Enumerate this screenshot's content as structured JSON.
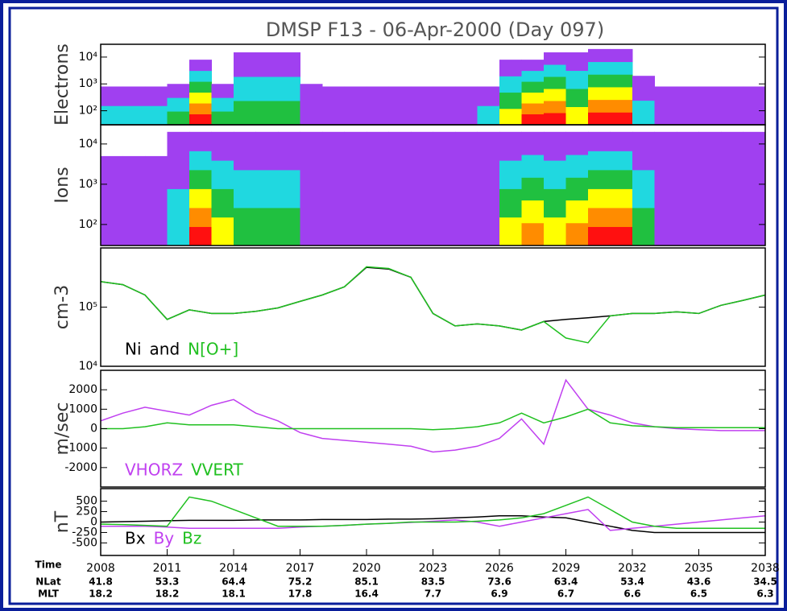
{
  "chart_data": [
    {
      "type": "spectrogram",
      "title": "DMSP F13 - 06-Apr-2000 (Day 097)",
      "ylabel": "Electrons",
      "ylog": true,
      "ylim": [
        30,
        30000
      ],
      "yticks": [
        {
          "value": 100,
          "label": "10²"
        },
        {
          "value": 1000,
          "label": "10³"
        },
        {
          "value": 10000,
          "label": "10⁴"
        }
      ],
      "xlim": [
        1208,
        1238
      ],
      "x": [
        1208,
        1209,
        1210,
        1211,
        1212,
        1213,
        1214,
        1215,
        1216,
        1217,
        1218,
        1219,
        1220,
        1221,
        1222,
        1223,
        1224,
        1225,
        1226,
        1227,
        1228,
        1229,
        1230,
        1231,
        1232,
        1233,
        1234,
        1235,
        1236,
        1237,
        1238
      ],
      "max_energy": [
        800,
        800,
        800,
        1000,
        8000,
        1000,
        15000,
        15000,
        15000,
        1000,
        800,
        800,
        800,
        800,
        800,
        800,
        800,
        800,
        8000,
        8000,
        15000,
        15000,
        20000,
        20000,
        2000,
        800,
        800,
        800,
        800,
        800,
        800
      ],
      "levels": [
        2,
        2,
        2,
        3,
        6,
        3,
        3,
        3,
        3,
        1,
        1,
        1,
        1,
        1,
        1,
        1,
        1,
        2,
        4,
        6,
        6,
        4,
        6,
        6,
        2,
        1,
        1,
        1,
        1,
        1,
        1
      ],
      "colors": [
        "#ffffff",
        "#a040f0",
        "#20d8e0",
        "#20c040",
        "#ffff00",
        "#ff8c00",
        "#ff1010"
      ]
    },
    {
      "type": "spectrogram",
      "ylabel": "Ions",
      "ylog": true,
      "ylim": [
        30,
        30000
      ],
      "yticks": [
        {
          "value": 100,
          "label": "10²"
        },
        {
          "value": 1000,
          "label": "10³"
        },
        {
          "value": 10000,
          "label": "10⁴"
        }
      ],
      "xlim": [
        1208,
        1238
      ],
      "x": [
        1208,
        1209,
        1210,
        1211,
        1212,
        1213,
        1214,
        1215,
        1216,
        1217,
        1218,
        1219,
        1220,
        1221,
        1222,
        1223,
        1224,
        1225,
        1226,
        1227,
        1228,
        1229,
        1230,
        1231,
        1232,
        1233,
        1234,
        1235,
        1236,
        1237,
        1238
      ],
      "max_energy": [
        5000,
        5000,
        5000,
        20000,
        20000,
        20000,
        20000,
        20000,
        20000,
        20000,
        20000,
        20000,
        20000,
        20000,
        20000,
        20000,
        20000,
        20000,
        20000,
        20000,
        20000,
        20000,
        20000,
        20000,
        20000,
        20000,
        20000,
        20000,
        20000,
        20000,
        20000
      ],
      "levels": [
        1,
        1,
        1,
        2,
        6,
        4,
        3,
        3,
        3,
        1,
        1,
        1,
        1,
        1,
        1,
        1,
        1,
        1,
        4,
        5,
        4,
        5,
        6,
        6,
        3,
        1,
        1,
        1,
        1,
        1,
        1
      ],
      "colors": [
        "#ffffff",
        "#a040f0",
        "#20d8e0",
        "#20c040",
        "#ffff00",
        "#ff8c00",
        "#ff1010"
      ]
    },
    {
      "type": "line",
      "ylabel": "cm-3",
      "ylog": true,
      "ylim": [
        10000,
        1000000
      ],
      "yticks": [
        {
          "value": 10000,
          "label": "10⁴"
        },
        {
          "value": 100000,
          "label": "10⁵"
        }
      ],
      "xlim": [
        1208,
        1238
      ],
      "legend_joiner": "and",
      "x": [
        1208,
        1209,
        1210,
        1211,
        1212,
        1213,
        1214,
        1215,
        1216,
        1217,
        1218,
        1219,
        1220,
        1221,
        1222,
        1223,
        1224,
        1225,
        1226,
        1227,
        1228,
        1229,
        1230,
        1231,
        1232,
        1233,
        1234,
        1235,
        1236,
        1237,
        1238
      ],
      "series": [
        {
          "name": "Ni",
          "color": "#000000",
          "values": [
            270000,
            240000,
            160000,
            62000,
            90000,
            78000,
            78000,
            85000,
            97000,
            125000,
            160000,
            220000,
            470000,
            440000,
            320000,
            78000,
            48000,
            52000,
            48000,
            41000,
            57000,
            62000,
            66000,
            71000,
            78000,
            78000,
            83000,
            78000,
            107000,
            130000,
            160000
          ]
        },
        {
          "name": "N[O+]",
          "color": "#20c020",
          "values": [
            270000,
            240000,
            160000,
            62000,
            90000,
            78000,
            78000,
            85000,
            97000,
            125000,
            160000,
            220000,
            480000,
            450000,
            320000,
            78000,
            48000,
            52000,
            48000,
            41000,
            57000,
            30000,
            25000,
            71000,
            78000,
            78000,
            83000,
            78000,
            107000,
            130000,
            160000
          ]
        }
      ]
    },
    {
      "type": "line",
      "ylabel": "m/sec",
      "ylog": false,
      "ylim": [
        -3000,
        3000
      ],
      "yticks": [
        2000,
        1000,
        0,
        -1000,
        -2000
      ],
      "xlim": [
        1208,
        1238
      ],
      "x": [
        1208,
        1209,
        1210,
        1211,
        1212,
        1213,
        1214,
        1215,
        1216,
        1217,
        1218,
        1219,
        1220,
        1221,
        1222,
        1223,
        1224,
        1225,
        1226,
        1227,
        1228,
        1229,
        1230,
        1231,
        1232,
        1233,
        1234,
        1235,
        1236,
        1237,
        1238
      ],
      "series": [
        {
          "name": "VHORZ",
          "color": "#c040f0",
          "values": [
            400,
            800,
            1100,
            900,
            700,
            1200,
            1500,
            800,
            400,
            -200,
            -500,
            -600,
            -700,
            -800,
            -900,
            -1200,
            -1100,
            -900,
            -500,
            500,
            -800,
            2500,
            1000,
            700,
            300,
            100,
            0,
            -50,
            -100,
            -100,
            -100
          ]
        },
        {
          "name": "VVERT",
          "color": "#20c020",
          "values": [
            0,
            0,
            100,
            300,
            200,
            200,
            200,
            100,
            0,
            0,
            0,
            0,
            0,
            0,
            0,
            -50,
            0,
            100,
            300,
            800,
            300,
            600,
            1000,
            300,
            150,
            100,
            50,
            50,
            50,
            50,
            50
          ]
        }
      ]
    },
    {
      "type": "line",
      "ylabel": "nT",
      "ylog": false,
      "ylim": [
        -800,
        800
      ],
      "yticks": [
        500,
        250,
        0,
        -250,
        -500
      ],
      "xlim": [
        1208,
        1238
      ],
      "x": [
        1208,
        1209,
        1210,
        1211,
        1212,
        1213,
        1214,
        1215,
        1216,
        1217,
        1218,
        1219,
        1220,
        1221,
        1222,
        1223,
        1224,
        1225,
        1226,
        1227,
        1228,
        1229,
        1230,
        1231,
        1232,
        1233,
        1234,
        1235,
        1236,
        1237,
        1238
      ],
      "series": [
        {
          "name": "Bx",
          "color": "#000000",
          "values": [
            0,
            10,
            20,
            30,
            40,
            40,
            40,
            50,
            50,
            50,
            60,
            60,
            60,
            70,
            70,
            80,
            100,
            120,
            150,
            150,
            120,
            100,
            0,
            -100,
            -200,
            -250,
            -250,
            -250,
            -250,
            -250,
            -250
          ]
        },
        {
          "name": "By",
          "color": "#c040f0",
          "values": [
            -100,
            -100,
            -100,
            -120,
            -150,
            -150,
            -150,
            -150,
            -150,
            -120,
            -100,
            -80,
            -50,
            -30,
            -10,
            20,
            50,
            0,
            -100,
            0,
            100,
            200,
            300,
            -200,
            -150,
            -100,
            -50,
            0,
            50,
            100,
            150
          ]
        },
        {
          "name": "Bz",
          "color": "#20c020",
          "values": [
            -50,
            -60,
            -80,
            -100,
            600,
            500,
            300,
            100,
            -100,
            -100,
            -100,
            -80,
            -50,
            -30,
            0,
            0,
            0,
            20,
            50,
            100,
            200,
            400,
            600,
            300,
            0,
            -100,
            -150,
            -150,
            -150,
            -150,
            -150
          ]
        }
      ],
      "xticks": [
        {
          "value": 1208,
          "label": "2008"
        },
        {
          "value": 1211,
          "label": "2011"
        },
        {
          "value": 1214,
          "label": "2014"
        },
        {
          "value": 1217,
          "label": "2017"
        },
        {
          "value": 1220,
          "label": "2020"
        },
        {
          "value": 1223,
          "label": "2023"
        },
        {
          "value": 1226,
          "label": "2026"
        },
        {
          "value": 1229,
          "label": "2029"
        },
        {
          "value": 1232,
          "label": "2032"
        },
        {
          "value": 1235,
          "label": "2035"
        },
        {
          "value": 1238,
          "label": "2038"
        }
      ],
      "time_label": "Time",
      "nlat_label": "NLat",
      "mlt_label": "MLT",
      "nlat": [
        41.8,
        53.3,
        64.4,
        75.2,
        85.1,
        83.5,
        73.6,
        63.4,
        53.4,
        43.6,
        34.5
      ],
      "mlt": [
        18.2,
        18.2,
        18.1,
        17.8,
        16.4,
        7.7,
        6.9,
        6.7,
        6.6,
        6.5,
        6.3
      ]
    }
  ]
}
